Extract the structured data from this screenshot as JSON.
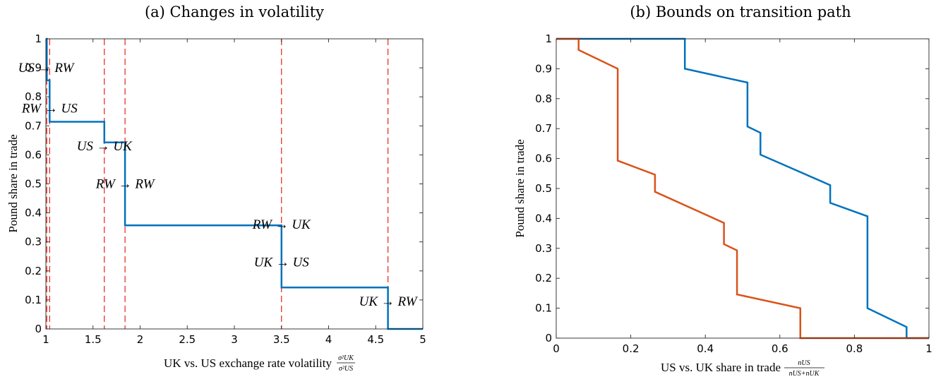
{
  "chart_data": [
    {
      "type": "line",
      "title": "(a) Changes in volatility",
      "xlabel": "UK vs. US exchange rate volatility",
      "xlabel_fraction": {
        "numerator": "σ²UK",
        "denominator": "σ²US"
      },
      "ylabel": "Pound share in trade",
      "xlim": [
        1,
        5
      ],
      "ylim": [
        0,
        1
      ],
      "xticks": [
        "1",
        "1.5",
        "2",
        "2.5",
        "3",
        "3.5",
        "4",
        "4.5",
        "5"
      ],
      "yticks": [
        "0",
        "0.1",
        "0.2",
        "0.3",
        "0.4",
        "0.5",
        "0.6",
        "0.7",
        "0.8",
        "0.9",
        "1"
      ],
      "grid": false,
      "series": [
        {
          "color": "#0072BD",
          "step": true,
          "x": [
            1.0,
            1.01,
            1.01,
            1.04,
            1.04,
            1.62,
            1.62,
            1.84,
            1.84,
            3.5,
            3.5,
            4.63,
            4.63,
            5.0
          ],
          "y": [
            1.0,
            1.0,
            0.857,
            0.857,
            0.714,
            0.714,
            0.643,
            0.643,
            0.357,
            0.357,
            0.143,
            0.143,
            0.0,
            0.0
          ]
        }
      ],
      "vlines": {
        "color": "#E8312A",
        "style": "dashed",
        "x": [
          1.01,
          1.04,
          1.62,
          1.84,
          3.5,
          4.63
        ]
      },
      "annotations": [
        {
          "text": "US → RW",
          "x": 1.0,
          "y": 0.9
        },
        {
          "text": "RW → US",
          "x": 1.04,
          "y": 0.76
        },
        {
          "text": "US → UK",
          "x": 1.62,
          "y": 0.63
        },
        {
          "text": "RW → RW",
          "x": 1.84,
          "y": 0.5
        },
        {
          "text": "RW → UK",
          "x": 3.5,
          "y": 0.36
        },
        {
          "text": "UK → US",
          "x": 3.5,
          "y": 0.23
        },
        {
          "text": "UK → RW",
          "x": 4.63,
          "y": 0.095
        }
      ]
    },
    {
      "type": "line",
      "title": "(b) Bounds on transition path",
      "xlabel": "US vs. UK share in trade",
      "xlabel_fraction": {
        "numerator": "nUS",
        "denominator": "nUS+nUK"
      },
      "ylabel": "Pound share in trade",
      "xlim": [
        0,
        1
      ],
      "ylim": [
        0,
        1
      ],
      "xticks": [
        "0",
        "0.2",
        "0.4",
        "0.6",
        "0.8",
        "1"
      ],
      "yticks": [
        "0",
        "0.1",
        "0.2",
        "0.3",
        "0.4",
        "0.5",
        "0.6",
        "0.7",
        "0.8",
        "0.9",
        "1"
      ],
      "grid": false,
      "series": [
        {
          "color": "#0072BD",
          "x": [
            0.0,
            0.345,
            0.345,
            0.513,
            0.513,
            0.548,
            0.548,
            0.735,
            0.735,
            0.835,
            0.835,
            0.94,
            0.94,
            1.0
          ],
          "y": [
            1.0,
            1.0,
            0.9,
            0.854,
            0.707,
            0.686,
            0.613,
            0.511,
            0.452,
            0.407,
            0.1,
            0.037,
            0.0,
            0.0
          ]
        },
        {
          "color": "#D95319",
          "x": [
            0.0,
            0.06,
            0.06,
            0.165,
            0.165,
            0.265,
            0.265,
            0.45,
            0.45,
            0.485,
            0.485,
            0.655,
            0.655,
            1.0
          ],
          "y": [
            1.0,
            1.0,
            0.963,
            0.9,
            0.593,
            0.546,
            0.489,
            0.385,
            0.314,
            0.293,
            0.146,
            0.1,
            0.0,
            0.0
          ]
        }
      ]
    }
  ]
}
